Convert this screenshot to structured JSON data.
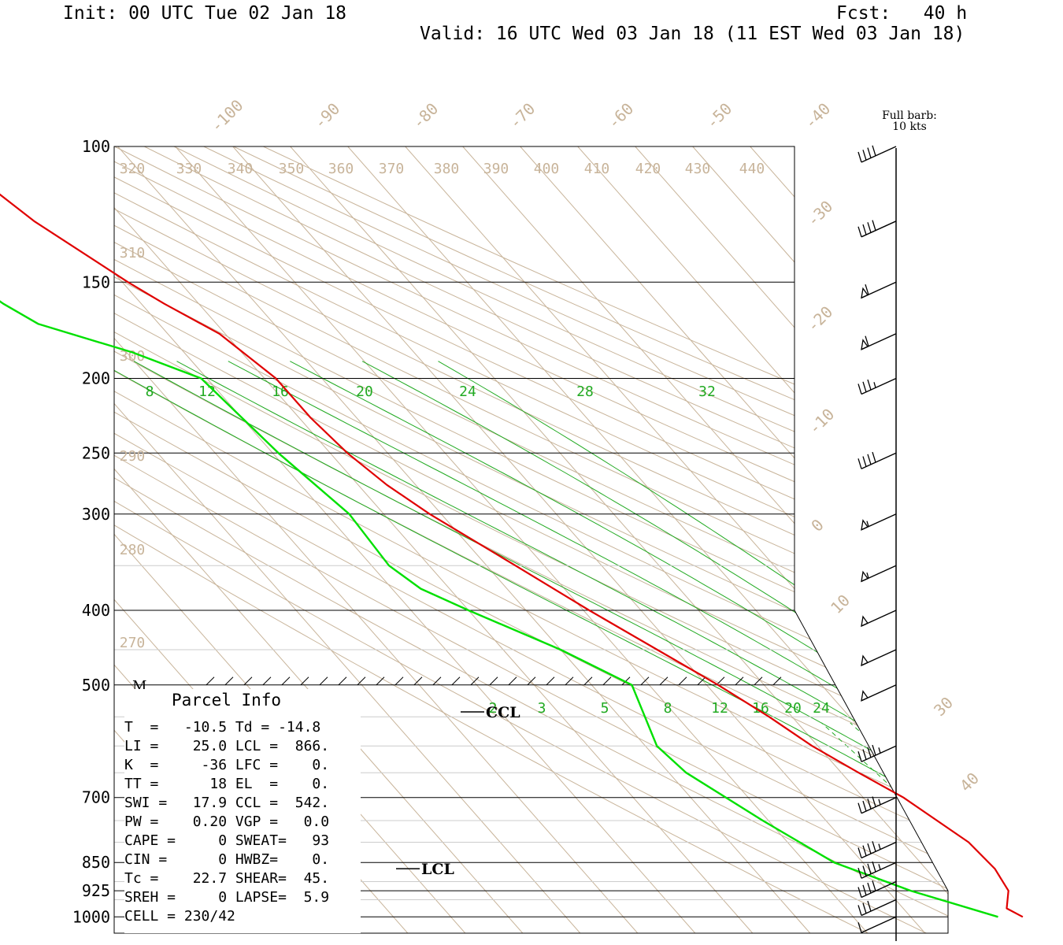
{
  "header": {
    "init": "Init: 00 UTC Tue 02 Jan 18",
    "fcst": "Fcst:   40 h",
    "valid": "Valid: 16 UTC Wed 03 Jan 18 (11 EST Wed 03 Jan 18)"
  },
  "barb_note": {
    "line1": "Full barb:",
    "line2": "10 kts"
  },
  "colors": {
    "temperature": "#e00000",
    "dewpoint": "#00e000",
    "mixing_ratio": "#22aa22",
    "dry_adiabat": "#c8b49a",
    "isotherm": "#c8b49a",
    "isobar": "#000000"
  },
  "parcel_info": {
    "title": "Parcel Info",
    "rows": [
      "T  =   -10.5 Td = -14.8",
      "LI =    25.0 LCL =  866.",
      "K  =     -36 LFC =    0.",
      "TT =      18 EL  =    0.",
      "SWI =   17.9 CCL =  542.",
      "PW =    0.20 VGP =   0.0",
      "CAPE =     0 SWEAT=   93",
      "CIN =      0 HWBZ=    0.",
      "Tc =    22.7 SHEAR=  45.",
      "SREH =     0 LAPSE=  5.9",
      "CELL = 230/42"
    ]
  },
  "chart_data": {
    "type": "skew-t",
    "pressure_levels": [
      "100",
      "150",
      "200",
      "250",
      "300",
      "400",
      "500",
      "700",
      "850",
      "925",
      "1000"
    ],
    "pressure_values": [
      100,
      150,
      200,
      250,
      300,
      400,
      500,
      700,
      850,
      925,
      1000
    ],
    "isotherm_labels": [
      "-100",
      "-90",
      "-80",
      "-70",
      "-60",
      "-50",
      "-40",
      "-30",
      "-20",
      "-10",
      "0",
      "10",
      "30",
      "40"
    ],
    "isotherm_values": [
      -100,
      -90,
      -80,
      -70,
      -60,
      -50,
      -40,
      -30,
      -20,
      -10,
      0,
      10,
      30,
      40
    ],
    "theta_labels": [
      "320",
      "330",
      "340",
      "350",
      "360",
      "370",
      "380",
      "390",
      "400",
      "410",
      "420",
      "430",
      "440",
      "310",
      "300",
      "290",
      "280",
      "270"
    ],
    "theta_values": [
      320,
      330,
      340,
      350,
      360,
      370,
      380,
      390,
      400,
      410,
      420,
      430,
      440,
      310,
      300,
      290,
      280,
      270
    ],
    "mixing_ratio_upper_labels": [
      "8",
      "12",
      "16",
      "20",
      "24",
      "28",
      "32"
    ],
    "mixing_ratio_lower_labels": [
      "2",
      "3",
      "5",
      "8",
      "12",
      "16",
      "20",
      "24"
    ],
    "markers": {
      "ccl": "CCL",
      "lcl": "LCL",
      "melting_level": "M"
    },
    "temperature_profile": [
      {
        "p": 1000,
        "t": -10.5
      },
      {
        "p": 975,
        "t": -12
      },
      {
        "p": 925,
        "t": -9
      },
      {
        "p": 866,
        "t": -8
      },
      {
        "p": 800,
        "t": -8.5
      },
      {
        "p": 700,
        "t": -13
      },
      {
        "p": 650,
        "t": -17
      },
      {
        "p": 600,
        "t": -21
      },
      {
        "p": 550,
        "t": -24
      },
      {
        "p": 500,
        "t": -28
      },
      {
        "p": 400,
        "t": -39
      },
      {
        "p": 350,
        "t": -45
      },
      {
        "p": 300,
        "t": -52
      },
      {
        "p": 275,
        "t": -55
      },
      {
        "p": 250,
        "t": -57
      },
      {
        "p": 225,
        "t": -58
      },
      {
        "p": 200,
        "t": -58
      },
      {
        "p": 175,
        "t": -61
      },
      {
        "p": 160,
        "t": -66
      },
      {
        "p": 150,
        "t": -69
      },
      {
        "p": 125,
        "t": -76
      },
      {
        "p": 110,
        "t": -79
      },
      {
        "p": 100,
        "t": -81
      }
    ],
    "dewpoint_profile": [
      {
        "p": 1000,
        "t": -14.8
      },
      {
        "p": 925,
        "t": -26
      },
      {
        "p": 850,
        "t": -35
      },
      {
        "p": 750,
        "t": -41
      },
      {
        "p": 650,
        "t": -47
      },
      {
        "p": 600,
        "t": -48
      },
      {
        "p": 500,
        "t": -43
      },
      {
        "p": 450,
        "t": -50
      },
      {
        "p": 400,
        "t": -60
      },
      {
        "p": 375,
        "t": -65
      },
      {
        "p": 350,
        "t": -67
      },
      {
        "p": 300,
        "t": -66
      },
      {
        "p": 250,
        "t": -69
      },
      {
        "p": 200,
        "t": -71
      },
      {
        "p": 185,
        "t": -79
      },
      {
        "p": 170,
        "t": -91
      },
      {
        "p": 160,
        "t": -94
      },
      {
        "p": 150,
        "t": -96
      },
      {
        "p": 130,
        "t": -100
      },
      {
        "p": 115,
        "t": -102
      },
      {
        "p": 100,
        "t": -104
      }
    ],
    "wind_profile_kts": [
      {
        "p": 1000,
        "spd": 10
      },
      {
        "p": 950,
        "spd": 30
      },
      {
        "p": 900,
        "spd": 40
      },
      {
        "p": 850,
        "spd": 45
      },
      {
        "p": 800,
        "spd": 45
      },
      {
        "p": 700,
        "spd": 45
      },
      {
        "p": 600,
        "spd": 45
      },
      {
        "p": 500,
        "spd": 50
      },
      {
        "p": 450,
        "spd": 50
      },
      {
        "p": 400,
        "spd": 50
      },
      {
        "p": 350,
        "spd": 55
      },
      {
        "p": 300,
        "spd": 55
      },
      {
        "p": 250,
        "spd": 40
      },
      {
        "p": 200,
        "spd": 35
      },
      {
        "p": 175,
        "spd": 60
      },
      {
        "p": 150,
        "spd": 60
      },
      {
        "p": 125,
        "spd": 40
      },
      {
        "p": 100,
        "spd": 40
      }
    ]
  }
}
